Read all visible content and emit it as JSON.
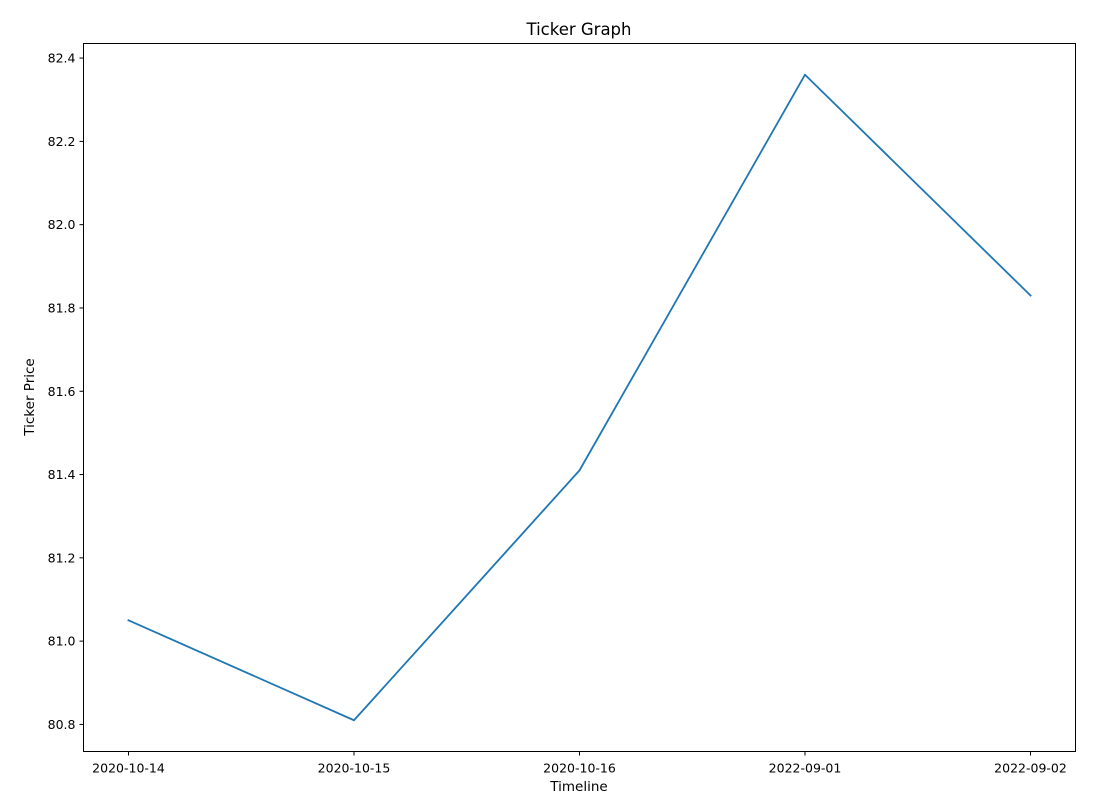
{
  "chart_data": {
    "type": "line",
    "title": "Ticker Graph",
    "xlabel": "Timeline",
    "ylabel": "Ticker Price",
    "categories": [
      "2020-10-14",
      "2020-10-15",
      "2020-10-16",
      "2022-09-01",
      "2022-09-02"
    ],
    "series": [
      {
        "values": [
          81.05,
          80.81,
          81.41,
          82.36,
          81.83
        ]
      }
    ],
    "yticks": [
      80.8,
      81.0,
      81.2,
      81.4,
      81.6,
      81.8,
      82.0,
      82.2,
      82.4
    ],
    "ytick_labels": [
      "80.8",
      "81.0",
      "81.2",
      "81.4",
      "81.6",
      "81.8",
      "82.0",
      "82.2",
      "82.4"
    ],
    "ylim": [
      80.735,
      82.435
    ],
    "grid": false,
    "legend": "none",
    "colors": {
      "line": "#1f77b4",
      "axes": "#000000",
      "background": "#ffffff"
    }
  }
}
